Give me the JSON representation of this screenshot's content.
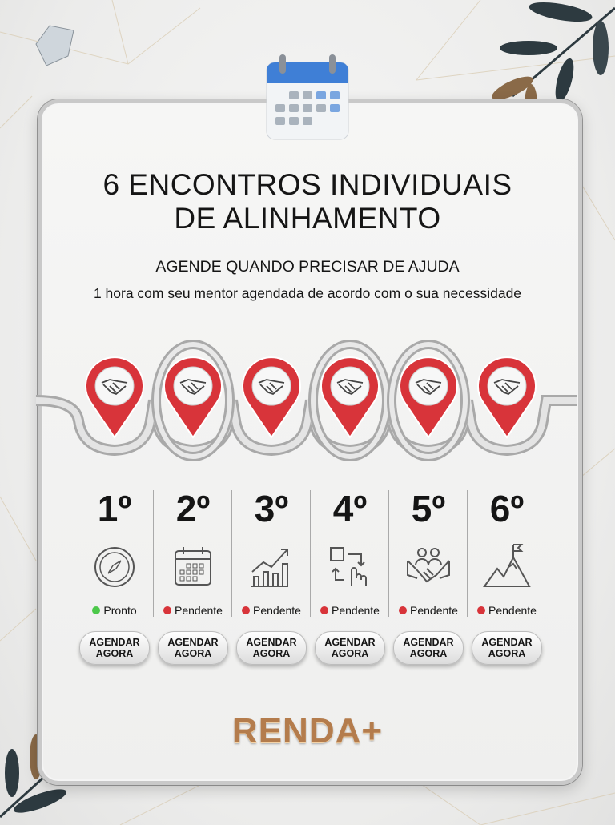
{
  "title_line1": "6 ENCONTROS INDIVIDUAIS",
  "title_line2": "DE ALINHAMENTO",
  "subtitle": "AGENDE QUANDO PRECISAR DE AJUDA",
  "description": "1 hora com seu mentor agendada de acordo com o sua necessidade",
  "colors": {
    "pin": "#d8343a",
    "ready": "#4cc84a",
    "pending": "#d8343a",
    "brand": "#b47c4c"
  },
  "steps": [
    {
      "number": "1º",
      "icon": "compass-icon",
      "status": "Pronto",
      "state": "ready",
      "button": "AGENDAR\nAGORA"
    },
    {
      "number": "2º",
      "icon": "calendar-icon",
      "status": "Pendente",
      "state": "pending",
      "button": "AGENDAR\nAGORA"
    },
    {
      "number": "3º",
      "icon": "growth-chart-icon",
      "status": "Pendente",
      "state": "pending",
      "button": "AGENDAR\nAGORA"
    },
    {
      "number": "4º",
      "icon": "process-click-icon",
      "status": "Pendente",
      "state": "pending",
      "button": "AGENDAR\nAGORA"
    },
    {
      "number": "5º",
      "icon": "partnership-icon",
      "status": "Pendente",
      "state": "pending",
      "button": "AGENDAR\nAGORA"
    },
    {
      "number": "6º",
      "icon": "mountain-flag-icon",
      "status": "Pendente",
      "state": "pending",
      "button": "AGENDAR\nAGORA"
    }
  ],
  "brand": "RENDA+"
}
